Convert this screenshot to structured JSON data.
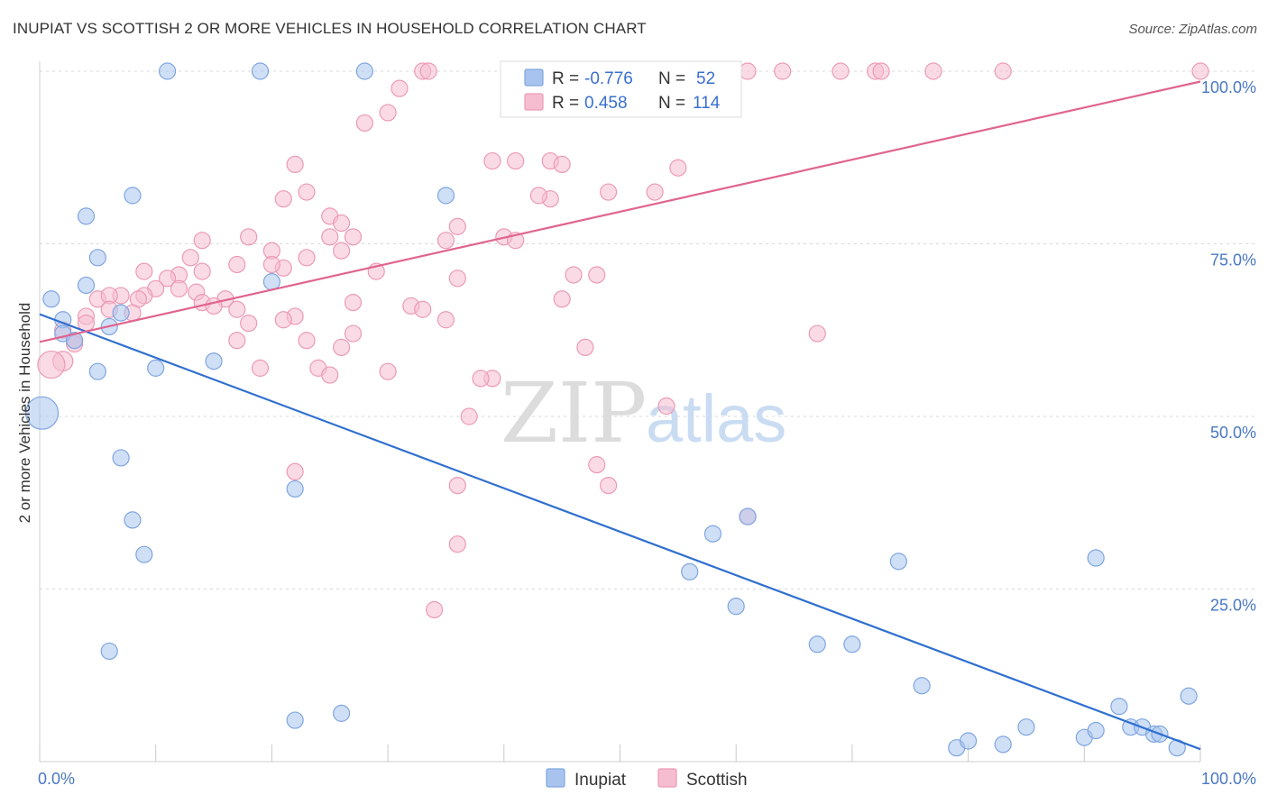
{
  "title": "INUPIAT VS SCOTTISH 2 OR MORE VEHICLES IN HOUSEHOLD CORRELATION CHART",
  "source": "Source: ZipAtlas.com",
  "watermark": {
    "zip": "ZIP",
    "atlas": "atlas"
  },
  "colors": {
    "inupiat_fill": "#a8c4ee",
    "inupiat_stroke": "#7fa6e0",
    "inupiat_line": "#2f6fd0",
    "scottish_fill": "#f6bdd0",
    "scottish_stroke": "#ec9ab6",
    "scottish_line": "#e0648f",
    "accent_text": "#4a78c2"
  },
  "legend": {
    "rows": [
      {
        "series": "inupiat",
        "r_label": "R = ",
        "r_value": "-0.776",
        "n_label": "N = ",
        "n_value": "52"
      },
      {
        "series": "scottish",
        "r_label": "R = ",
        "r_value": "0.458",
        "n_label": "N = ",
        "n_value": "114"
      }
    ]
  },
  "chart_data": {
    "type": "scatter",
    "xlabel": "",
    "ylabel": "2 or more Vehicles in Household",
    "xlim": [
      0,
      100
    ],
    "ylim": [
      0,
      100
    ],
    "x_ticks": [
      "0.0%",
      "100.0%"
    ],
    "y_ticks": [
      "25.0%",
      "50.0%",
      "75.0%",
      "100.0%"
    ],
    "grid": true,
    "legend_placement": "top-center",
    "series": [
      {
        "name": "Inupiat",
        "key": "inupiat",
        "trend": {
          "x": [
            0,
            100
          ],
          "y": [
            64.8,
            1.8
          ]
        },
        "points": [
          [
            11,
            100
          ],
          [
            19,
            100
          ],
          [
            28,
            100
          ],
          [
            8,
            82
          ],
          [
            35,
            82
          ],
          [
            4,
            79
          ],
          [
            5,
            73
          ],
          [
            1,
            67
          ],
          [
            4,
            69
          ],
          [
            2,
            64
          ],
          [
            20,
            69.5
          ],
          [
            7,
            65
          ],
          [
            2,
            62
          ],
          [
            6,
            63
          ],
          [
            3,
            61
          ],
          [
            5,
            56.5
          ],
          [
            10,
            57
          ],
          [
            15,
            58
          ],
          [
            0.2,
            50.5
          ],
          [
            7,
            44
          ],
          [
            22,
            39.5
          ],
          [
            8,
            35
          ],
          [
            9,
            30
          ],
          [
            56,
            27.5
          ],
          [
            58,
            33
          ],
          [
            61,
            35.5
          ],
          [
            6,
            16
          ],
          [
            60,
            22.5
          ],
          [
            74,
            29
          ],
          [
            91,
            29.5
          ],
          [
            22,
            6
          ],
          [
            26,
            7
          ],
          [
            67,
            17
          ],
          [
            70,
            17
          ],
          [
            76,
            11
          ],
          [
            79,
            2
          ],
          [
            80,
            3
          ],
          [
            83,
            2.5
          ],
          [
            85,
            5
          ],
          [
            90,
            3.5
          ],
          [
            91,
            4.5
          ],
          [
            93,
            8
          ],
          [
            94,
            5
          ],
          [
            95,
            5
          ],
          [
            96,
            4
          ],
          [
            96.5,
            4
          ],
          [
            98,
            2
          ],
          [
            99,
            9.5
          ]
        ],
        "sizes": {
          "0.2,50.5": 36
        }
      },
      {
        "name": "Scottish",
        "key": "scottish",
        "trend": {
          "x": [
            0,
            100
          ],
          "y": [
            60.8,
            98.5
          ]
        },
        "points": [
          [
            33,
            100
          ],
          [
            33.5,
            100
          ],
          [
            47,
            100
          ],
          [
            57,
            100
          ],
          [
            59,
            100
          ],
          [
            61,
            100
          ],
          [
            64,
            100
          ],
          [
            69,
            100
          ],
          [
            72,
            100
          ],
          [
            72.5,
            100
          ],
          [
            77,
            100
          ],
          [
            83,
            100
          ],
          [
            100,
            100
          ],
          [
            31,
            97.5
          ],
          [
            30,
            94
          ],
          [
            28,
            92.5
          ],
          [
            44,
            87
          ],
          [
            39,
            87
          ],
          [
            41,
            87
          ],
          [
            45,
            86.5
          ],
          [
            55,
            86
          ],
          [
            22,
            86.5
          ],
          [
            23,
            82.5
          ],
          [
            21,
            81.5
          ],
          [
            44,
            81.5
          ],
          [
            43,
            82
          ],
          [
            49,
            82.5
          ],
          [
            53,
            82.5
          ],
          [
            25,
            79
          ],
          [
            26,
            78
          ],
          [
            36,
            77.5
          ],
          [
            25,
            76
          ],
          [
            18,
            76
          ],
          [
            14,
            75.5
          ],
          [
            27,
            76
          ],
          [
            35,
            75.5
          ],
          [
            40,
            76
          ],
          [
            41,
            75.5
          ],
          [
            26,
            74
          ],
          [
            23,
            73
          ],
          [
            20,
            74
          ],
          [
            17,
            72
          ],
          [
            13,
            73
          ],
          [
            21,
            71.5
          ],
          [
            20,
            72
          ],
          [
            12,
            70.5
          ],
          [
            29,
            71
          ],
          [
            9,
            71
          ],
          [
            11,
            70
          ],
          [
            14,
            71
          ],
          [
            12,
            68.5
          ],
          [
            10,
            68.5
          ],
          [
            13.5,
            68
          ],
          [
            9,
            67.5
          ],
          [
            7,
            67.5
          ],
          [
            8.5,
            67
          ],
          [
            5,
            67
          ],
          [
            6,
            67.5
          ],
          [
            14,
            66.5
          ],
          [
            16,
            67
          ],
          [
            15,
            66
          ],
          [
            17,
            65.5
          ],
          [
            32,
            66
          ],
          [
            33,
            65.5
          ],
          [
            35,
            64
          ],
          [
            22,
            64.5
          ],
          [
            46,
            70.5
          ],
          [
            48,
            70.5
          ],
          [
            36,
            70
          ],
          [
            27,
            66.5
          ],
          [
            45,
            67
          ],
          [
            21,
            64
          ],
          [
            6,
            65.5
          ],
          [
            8,
            65
          ],
          [
            4,
            64.5
          ],
          [
            4,
            63.5
          ],
          [
            2,
            62.5
          ],
          [
            18,
            63.5
          ],
          [
            17,
            61
          ],
          [
            23,
            61
          ],
          [
            27,
            62
          ],
          [
            26,
            60
          ],
          [
            47,
            60
          ],
          [
            67,
            62
          ],
          [
            3,
            60.5
          ],
          [
            3,
            61
          ],
          [
            2,
            58
          ],
          [
            1,
            57.5
          ],
          [
            24,
            57
          ],
          [
            25,
            56
          ],
          [
            19,
            57
          ],
          [
            30,
            56.5
          ],
          [
            39,
            55.5
          ],
          [
            38,
            55.5
          ],
          [
            54,
            51.5
          ],
          [
            37,
            50
          ],
          [
            48,
            43
          ],
          [
            49,
            40
          ],
          [
            36,
            40
          ],
          [
            22,
            42
          ],
          [
            61,
            35.5
          ],
          [
            36,
            31.5
          ],
          [
            34,
            22
          ]
        ],
        "sizes": {
          "1,57.5": 30,
          "2,58": 22
        }
      }
    ]
  },
  "bottom_legend": [
    {
      "series": "inupiat",
      "label": "Inupiat"
    },
    {
      "series": "scottish",
      "label": "Scottish"
    }
  ]
}
